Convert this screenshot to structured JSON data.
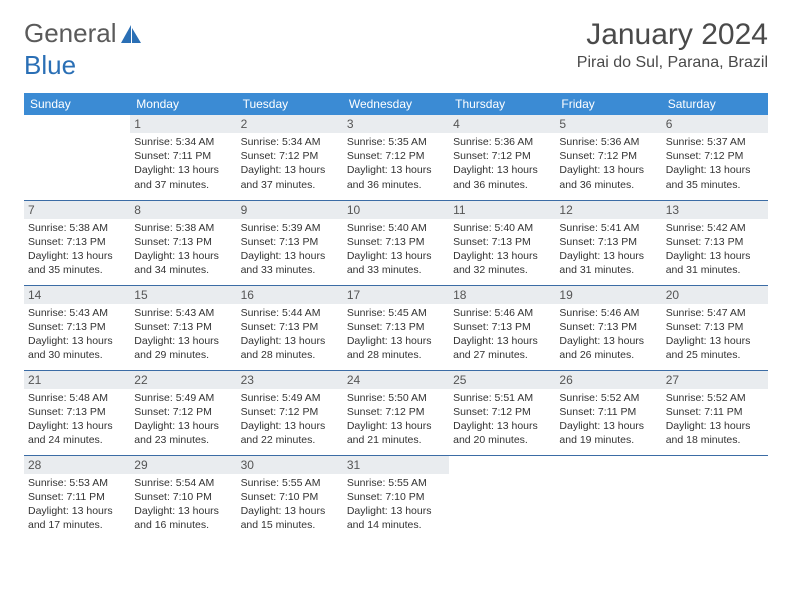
{
  "logo": {
    "part1": "General",
    "part2": "Blue"
  },
  "title": "January 2024",
  "location": "Pirai do Sul, Parana, Brazil",
  "colors": {
    "header_bg": "#3b8bd4",
    "header_fg": "#ffffff",
    "row_divider": "#3b6ca5",
    "daynum_bg": "#e9ecef",
    "text": "#333333",
    "logo_gray": "#5a5a5a",
    "logo_blue": "#2a6fb5"
  },
  "day_headers": [
    "Sunday",
    "Monday",
    "Tuesday",
    "Wednesday",
    "Thursday",
    "Friday",
    "Saturday"
  ],
  "weeks": [
    [
      null,
      {
        "n": "1",
        "sr": "Sunrise: 5:34 AM",
        "ss": "Sunset: 7:11 PM",
        "d1": "Daylight: 13 hours",
        "d2": "and 37 minutes."
      },
      {
        "n": "2",
        "sr": "Sunrise: 5:34 AM",
        "ss": "Sunset: 7:12 PM",
        "d1": "Daylight: 13 hours",
        "d2": "and 37 minutes."
      },
      {
        "n": "3",
        "sr": "Sunrise: 5:35 AM",
        "ss": "Sunset: 7:12 PM",
        "d1": "Daylight: 13 hours",
        "d2": "and 36 minutes."
      },
      {
        "n": "4",
        "sr": "Sunrise: 5:36 AM",
        "ss": "Sunset: 7:12 PM",
        "d1": "Daylight: 13 hours",
        "d2": "and 36 minutes."
      },
      {
        "n": "5",
        "sr": "Sunrise: 5:36 AM",
        "ss": "Sunset: 7:12 PM",
        "d1": "Daylight: 13 hours",
        "d2": "and 36 minutes."
      },
      {
        "n": "6",
        "sr": "Sunrise: 5:37 AM",
        "ss": "Sunset: 7:12 PM",
        "d1": "Daylight: 13 hours",
        "d2": "and 35 minutes."
      }
    ],
    [
      {
        "n": "7",
        "sr": "Sunrise: 5:38 AM",
        "ss": "Sunset: 7:13 PM",
        "d1": "Daylight: 13 hours",
        "d2": "and 35 minutes."
      },
      {
        "n": "8",
        "sr": "Sunrise: 5:38 AM",
        "ss": "Sunset: 7:13 PM",
        "d1": "Daylight: 13 hours",
        "d2": "and 34 minutes."
      },
      {
        "n": "9",
        "sr": "Sunrise: 5:39 AM",
        "ss": "Sunset: 7:13 PM",
        "d1": "Daylight: 13 hours",
        "d2": "and 33 minutes."
      },
      {
        "n": "10",
        "sr": "Sunrise: 5:40 AM",
        "ss": "Sunset: 7:13 PM",
        "d1": "Daylight: 13 hours",
        "d2": "and 33 minutes."
      },
      {
        "n": "11",
        "sr": "Sunrise: 5:40 AM",
        "ss": "Sunset: 7:13 PM",
        "d1": "Daylight: 13 hours",
        "d2": "and 32 minutes."
      },
      {
        "n": "12",
        "sr": "Sunrise: 5:41 AM",
        "ss": "Sunset: 7:13 PM",
        "d1": "Daylight: 13 hours",
        "d2": "and 31 minutes."
      },
      {
        "n": "13",
        "sr": "Sunrise: 5:42 AM",
        "ss": "Sunset: 7:13 PM",
        "d1": "Daylight: 13 hours",
        "d2": "and 31 minutes."
      }
    ],
    [
      {
        "n": "14",
        "sr": "Sunrise: 5:43 AM",
        "ss": "Sunset: 7:13 PM",
        "d1": "Daylight: 13 hours",
        "d2": "and 30 minutes."
      },
      {
        "n": "15",
        "sr": "Sunrise: 5:43 AM",
        "ss": "Sunset: 7:13 PM",
        "d1": "Daylight: 13 hours",
        "d2": "and 29 minutes."
      },
      {
        "n": "16",
        "sr": "Sunrise: 5:44 AM",
        "ss": "Sunset: 7:13 PM",
        "d1": "Daylight: 13 hours",
        "d2": "and 28 minutes."
      },
      {
        "n": "17",
        "sr": "Sunrise: 5:45 AM",
        "ss": "Sunset: 7:13 PM",
        "d1": "Daylight: 13 hours",
        "d2": "and 28 minutes."
      },
      {
        "n": "18",
        "sr": "Sunrise: 5:46 AM",
        "ss": "Sunset: 7:13 PM",
        "d1": "Daylight: 13 hours",
        "d2": "and 27 minutes."
      },
      {
        "n": "19",
        "sr": "Sunrise: 5:46 AM",
        "ss": "Sunset: 7:13 PM",
        "d1": "Daylight: 13 hours",
        "d2": "and 26 minutes."
      },
      {
        "n": "20",
        "sr": "Sunrise: 5:47 AM",
        "ss": "Sunset: 7:13 PM",
        "d1": "Daylight: 13 hours",
        "d2": "and 25 minutes."
      }
    ],
    [
      {
        "n": "21",
        "sr": "Sunrise: 5:48 AM",
        "ss": "Sunset: 7:13 PM",
        "d1": "Daylight: 13 hours",
        "d2": "and 24 minutes."
      },
      {
        "n": "22",
        "sr": "Sunrise: 5:49 AM",
        "ss": "Sunset: 7:12 PM",
        "d1": "Daylight: 13 hours",
        "d2": "and 23 minutes."
      },
      {
        "n": "23",
        "sr": "Sunrise: 5:49 AM",
        "ss": "Sunset: 7:12 PM",
        "d1": "Daylight: 13 hours",
        "d2": "and 22 minutes."
      },
      {
        "n": "24",
        "sr": "Sunrise: 5:50 AM",
        "ss": "Sunset: 7:12 PM",
        "d1": "Daylight: 13 hours",
        "d2": "and 21 minutes."
      },
      {
        "n": "25",
        "sr": "Sunrise: 5:51 AM",
        "ss": "Sunset: 7:12 PM",
        "d1": "Daylight: 13 hours",
        "d2": "and 20 minutes."
      },
      {
        "n": "26",
        "sr": "Sunrise: 5:52 AM",
        "ss": "Sunset: 7:11 PM",
        "d1": "Daylight: 13 hours",
        "d2": "and 19 minutes."
      },
      {
        "n": "27",
        "sr": "Sunrise: 5:52 AM",
        "ss": "Sunset: 7:11 PM",
        "d1": "Daylight: 13 hours",
        "d2": "and 18 minutes."
      }
    ],
    [
      {
        "n": "28",
        "sr": "Sunrise: 5:53 AM",
        "ss": "Sunset: 7:11 PM",
        "d1": "Daylight: 13 hours",
        "d2": "and 17 minutes."
      },
      {
        "n": "29",
        "sr": "Sunrise: 5:54 AM",
        "ss": "Sunset: 7:10 PM",
        "d1": "Daylight: 13 hours",
        "d2": "and 16 minutes."
      },
      {
        "n": "30",
        "sr": "Sunrise: 5:55 AM",
        "ss": "Sunset: 7:10 PM",
        "d1": "Daylight: 13 hours",
        "d2": "and 15 minutes."
      },
      {
        "n": "31",
        "sr": "Sunrise: 5:55 AM",
        "ss": "Sunset: 7:10 PM",
        "d1": "Daylight: 13 hours",
        "d2": "and 14 minutes."
      },
      null,
      null,
      null
    ]
  ]
}
